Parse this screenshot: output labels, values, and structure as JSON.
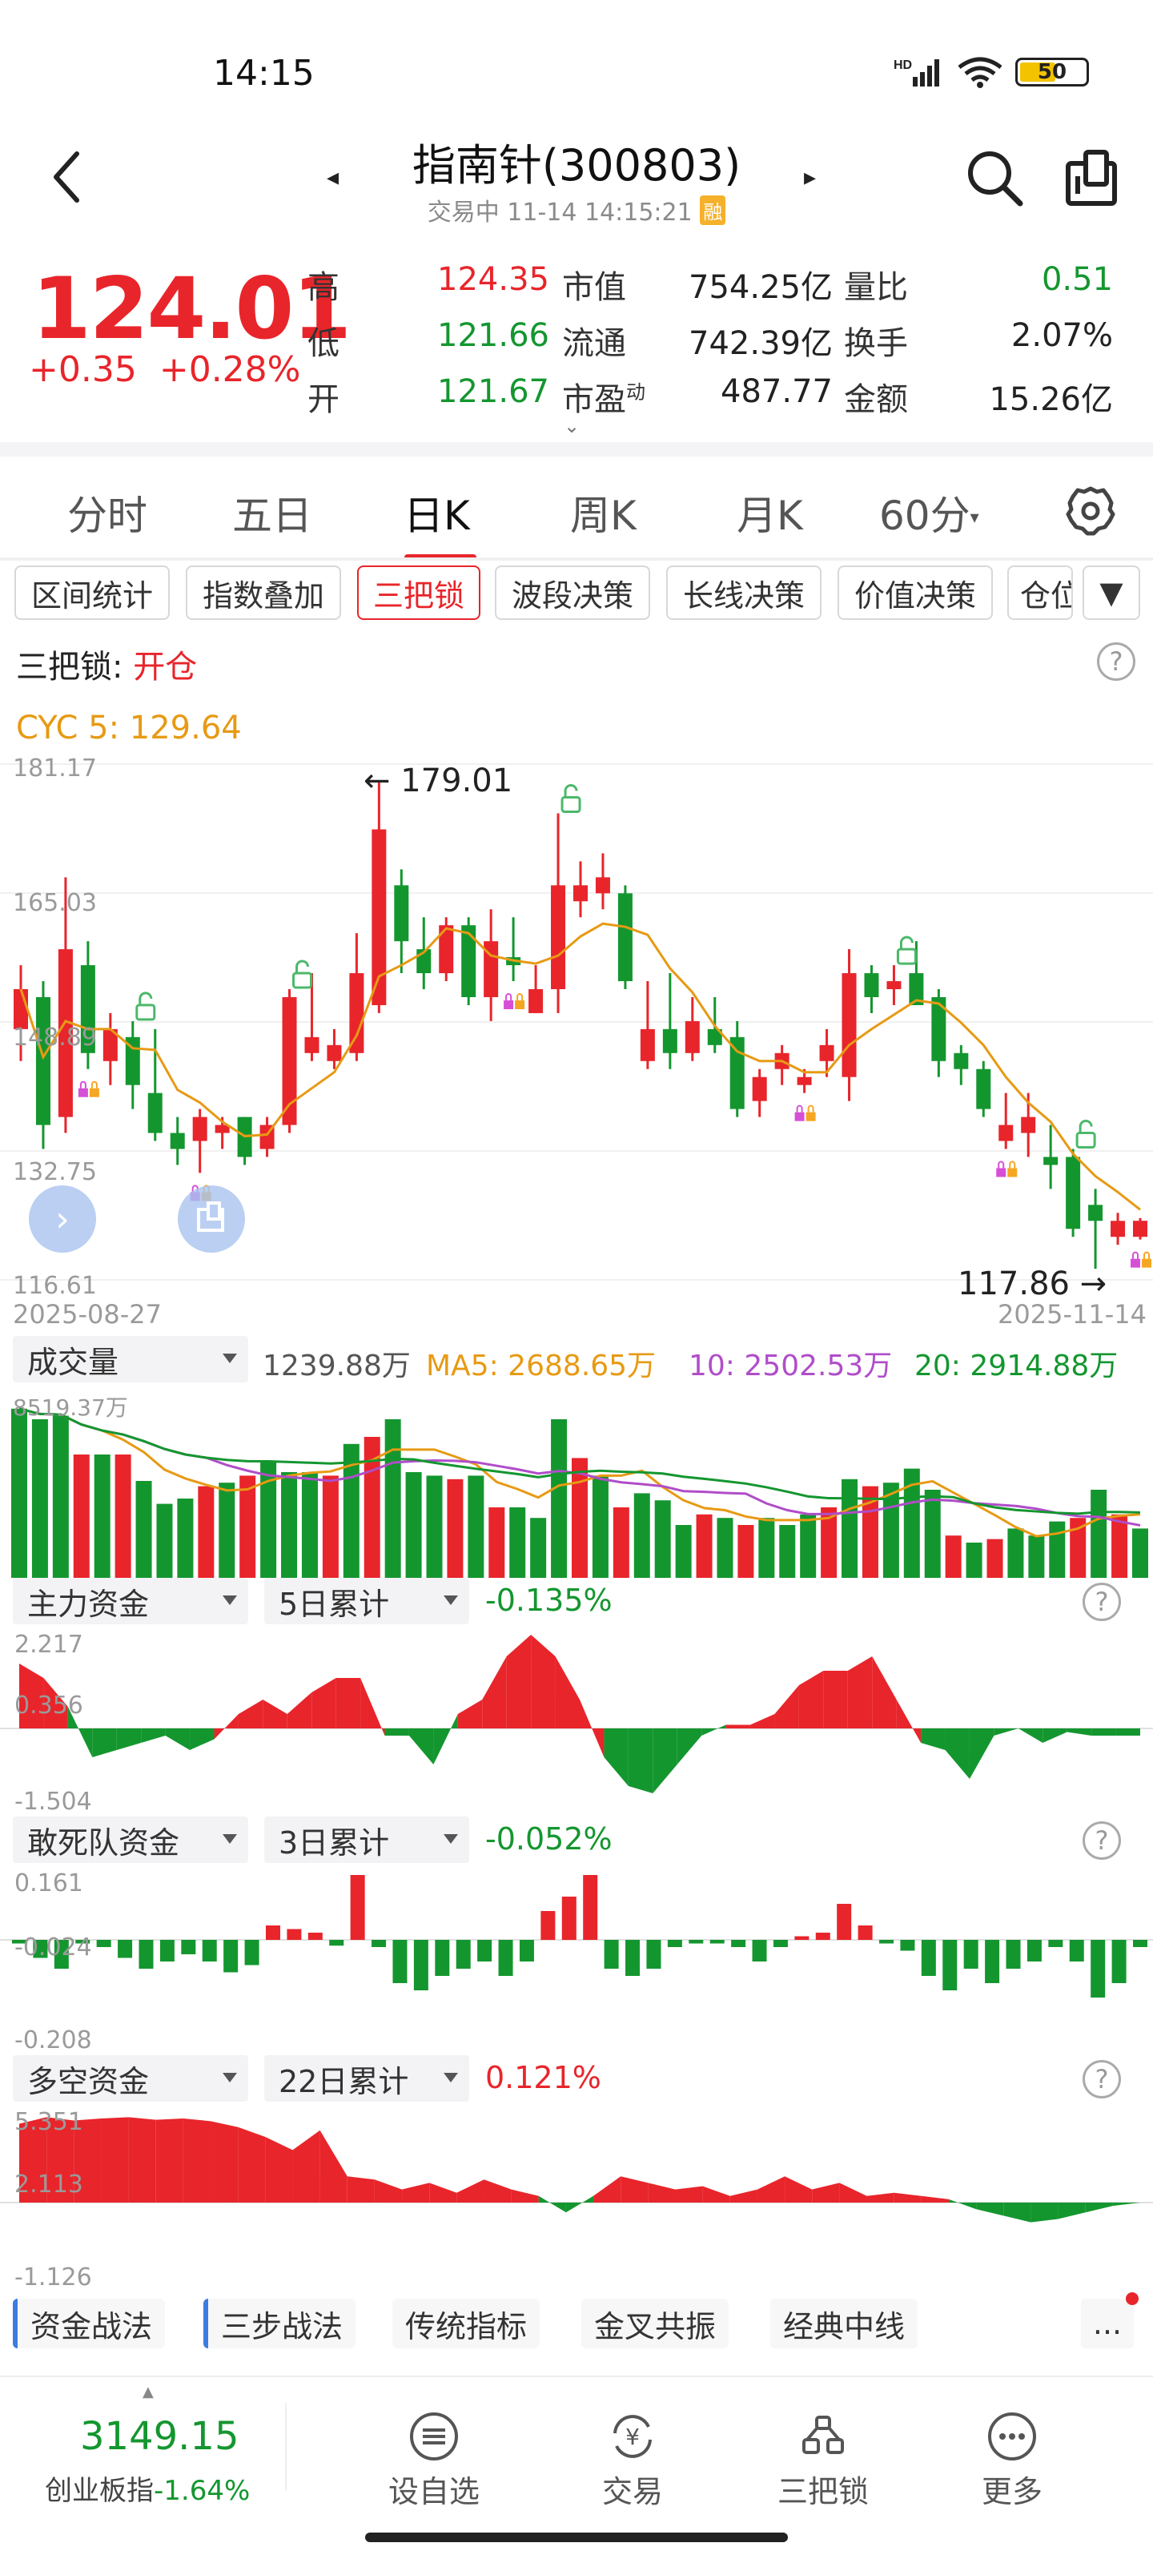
{
  "status": {
    "time": "14:15",
    "network": "HD",
    "battery": "50"
  },
  "header": {
    "title": "指南针(300803)",
    "subtitle": "交易中 11-14 14:15:21",
    "margin_badge": "融"
  },
  "quote": {
    "price": "124.01",
    "change": "+0.35",
    "change_pct": "+0.28%",
    "stats": [
      {
        "label": "高",
        "value": "124.35",
        "color": "red"
      },
      {
        "label": "低",
        "value": "121.66",
        "color": "green"
      },
      {
        "label": "开",
        "value": "121.67",
        "color": "green"
      }
    ],
    "stats2": [
      {
        "label": "市值",
        "value": "754.25亿"
      },
      {
        "label": "流通",
        "value": "742.39亿"
      },
      {
        "label": "市盈",
        "sup": "动",
        "value": "487.77"
      }
    ],
    "stats3": [
      {
        "label": "量比",
        "value": "0.51",
        "color": "green"
      },
      {
        "label": "换手",
        "value": "2.07%",
        "color": "dark"
      },
      {
        "label": "金额",
        "value": "15.26亿",
        "color": "dark"
      }
    ]
  },
  "period_tabs": [
    "分时",
    "五日",
    "日K",
    "周K",
    "月K",
    "60分"
  ],
  "active_tab": "日K",
  "indicator_chips": [
    "区间统计",
    "指数叠加",
    "三把锁",
    "波段决策",
    "长线决策",
    "价值决策",
    "仓位"
  ],
  "active_chip": "三把锁",
  "slk": {
    "label": "三把锁:",
    "value": "开仓"
  },
  "cyc": "CYC 5: 129.64",
  "kline": {
    "y_labels": [
      "181.17",
      "165.03",
      "148.89",
      "132.75",
      "116.61"
    ],
    "ylim": [
      116.61,
      181.17
    ],
    "high_marker": "179.01",
    "low_marker": "117.86",
    "start_date": "2025-08-27",
    "end_date": "2025-11-14"
  },
  "volume": {
    "selector": "成交量",
    "value": "1239.88万",
    "ma5": "MA5: 2688.65万",
    "ma10": "10: 2502.53万",
    "ma20": "20: 2914.88万",
    "top_label": "8519.37万"
  },
  "main_fund": {
    "selector": "主力资金",
    "period": "5日累计",
    "value": "-0.135%",
    "y_labels": [
      "2.217",
      "0.356",
      "-1.504"
    ]
  },
  "dare_fund": {
    "selector": "敢死队资金",
    "period": "3日累计",
    "value": "-0.052%",
    "y_labels": [
      "0.161",
      "-0.024",
      "-0.208"
    ]
  },
  "ls_fund": {
    "selector": "多空资金",
    "period": "22日累计",
    "value": "0.121%",
    "y_labels": [
      "5.351",
      "2.113",
      "-1.126"
    ]
  },
  "bottom_tools": [
    "资金战法",
    "三步战法",
    "传统指标",
    "金叉共振",
    "经典中线"
  ],
  "more_dots": "...",
  "index": {
    "value": "3149.15",
    "name": "创业板指",
    "change": "-1.64%"
  },
  "nav": [
    "设自选",
    "交易",
    "三把锁",
    "更多"
  ],
  "chart_data": {
    "type": "candlestick",
    "ylim": [
      116.61,
      181.17
    ],
    "x_range": [
      "2025-08-27",
      "2025-11-14"
    ],
    "candles": [
      [
        148,
        153,
        144,
        156,
        "r"
      ],
      [
        152,
        136,
        133,
        154,
        "g"
      ],
      [
        137,
        158,
        135,
        167,
        "r"
      ],
      [
        156,
        145,
        143,
        159,
        "g"
      ],
      [
        144,
        148,
        141,
        150,
        "r"
      ],
      [
        147,
        141,
        138,
        149,
        "g"
      ],
      [
        140,
        135,
        134,
        148,
        "g"
      ],
      [
        135,
        133,
        131,
        137,
        "g"
      ],
      [
        134,
        137,
        130,
        138,
        "r"
      ],
      [
        135,
        136,
        133,
        137,
        "r"
      ],
      [
        137,
        132,
        131,
        137,
        "g"
      ],
      [
        133,
        136,
        132,
        137,
        "r"
      ],
      [
        136,
        152,
        135,
        153,
        "r"
      ],
      [
        145,
        147,
        144,
        155,
        "r"
      ],
      [
        144,
        146,
        143,
        148,
        "r"
      ],
      [
        145,
        155,
        144,
        160,
        "r"
      ],
      [
        151,
        173,
        150,
        179.01,
        "r"
      ],
      [
        166,
        159,
        155,
        168,
        "g"
      ],
      [
        158,
        155,
        153,
        162,
        "g"
      ],
      [
        155,
        161,
        154,
        162,
        "r"
      ],
      [
        161,
        152,
        151,
        162,
        "g"
      ],
      [
        152,
        159,
        149,
        163,
        "r"
      ],
      [
        157,
        156,
        154,
        162,
        "g"
      ],
      [
        150,
        153,
        150,
        156,
        "r"
      ],
      [
        153,
        166,
        150,
        175,
        "r"
      ],
      [
        166,
        164,
        162,
        169,
        "r"
      ],
      [
        165,
        167,
        163,
        170,
        "r"
      ],
      [
        165,
        154,
        153,
        166,
        "g"
      ],
      [
        144,
        148,
        143,
        154,
        "r"
      ],
      [
        148,
        145,
        143,
        155,
        "g"
      ],
      [
        145,
        149,
        144,
        152,
        "r"
      ],
      [
        148,
        146,
        145,
        152,
        "g"
      ],
      [
        147,
        138,
        137,
        149,
        "g"
      ],
      [
        139,
        142,
        137,
        143,
        "r"
      ],
      [
        143,
        145,
        141,
        146,
        "r"
      ],
      [
        141,
        142,
        140,
        143,
        "r"
      ],
      [
        144,
        146,
        142,
        148,
        "r"
      ],
      [
        142,
        155,
        139,
        158,
        "r"
      ],
      [
        155,
        152,
        150,
        156,
        "g"
      ],
      [
        153,
        154,
        151,
        156,
        "r"
      ],
      [
        155,
        151,
        151,
        159,
        "g"
      ],
      [
        152,
        144,
        142,
        153,
        "g"
      ],
      [
        145,
        143,
        141,
        146,
        "g"
      ],
      [
        143,
        138,
        137,
        144,
        "g"
      ],
      [
        136,
        134,
        133,
        140,
        "r"
      ],
      [
        137,
        135,
        132,
        140,
        "r"
      ],
      [
        131,
        132,
        128,
        136,
        "g"
      ],
      [
        132,
        123,
        122,
        133,
        "g"
      ],
      [
        126,
        124,
        118,
        128,
        "g"
      ],
      [
        122,
        124,
        121,
        125,
        "r"
      ],
      [
        122,
        124.01,
        121.66,
        124.35,
        "r"
      ]
    ]
  }
}
